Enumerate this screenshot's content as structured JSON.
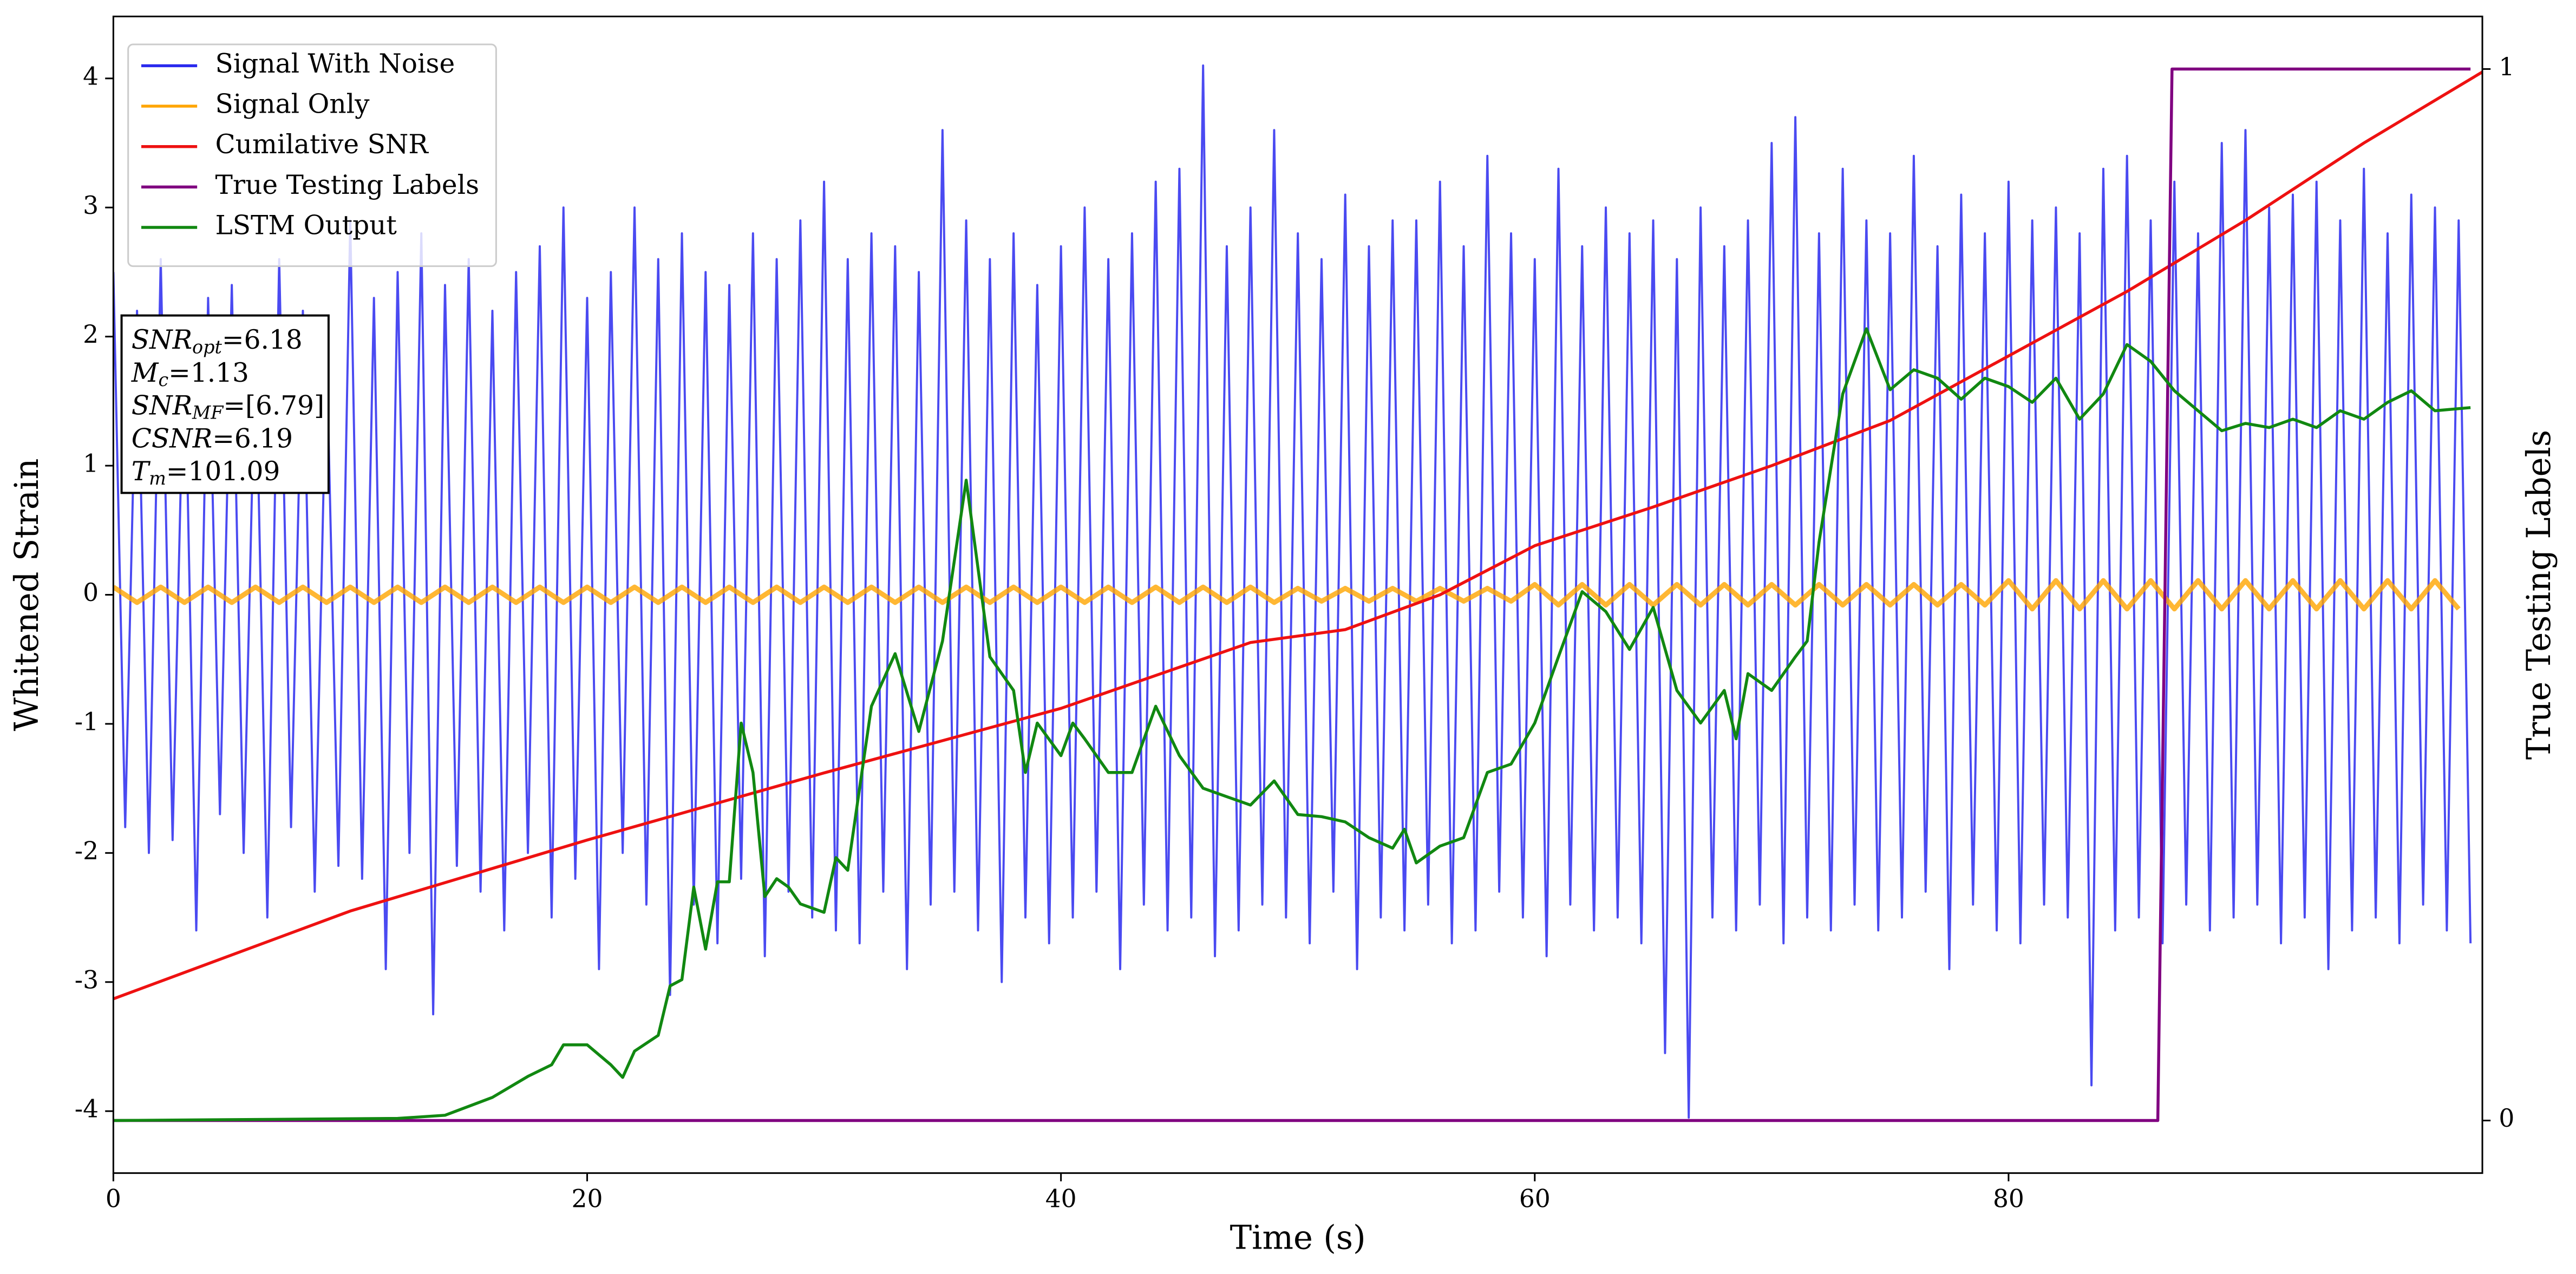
{
  "chart_data": {
    "type": "line",
    "xlabel": "Time (s)",
    "ylabel": "Whitened Strain",
    "y2label": "True Testing Labels",
    "xlim": [
      0,
      100
    ],
    "xticks": [
      0,
      20,
      40,
      60,
      80
    ],
    "ylim": [
      -4.48,
      4.48
    ],
    "yticks": [
      -4,
      -3,
      -2,
      -1,
      0,
      1,
      2,
      3,
      4
    ],
    "y2lim": [
      -0.05,
      1.05
    ],
    "y2ticks": [
      0,
      1
    ],
    "legend": "upper left",
    "annotation": [
      {
        "main": "SNR",
        "sub": "opt",
        "rest": "=6.18"
      },
      {
        "main": "M",
        "sub": "c",
        "rest": "=1.13"
      },
      {
        "main": "SNR",
        "sub": "MF",
        "rest": "=[6.79]"
      },
      {
        "main": "CSNR",
        "sub": "",
        "rest": "=6.19"
      },
      {
        "main": "T",
        "sub": "m",
        "rest": "=101.09"
      }
    ],
    "series": [
      {
        "name": "Signal With Noise",
        "color": "#2a2aee",
        "opacity": 0.85,
        "x": [
          0,
          0.5,
          1,
          1.5,
          2,
          2.5,
          3,
          3.5,
          4,
          4.5,
          5,
          5.5,
          6,
          6.5,
          7,
          7.5,
          8,
          8.5,
          9,
          9.5,
          10,
          10.5,
          11,
          11.5,
          12,
          12.5,
          13,
          13.5,
          14,
          14.5,
          15,
          15.5,
          16,
          16.5,
          17,
          17.5,
          18,
          18.5,
          19,
          19.5,
          20,
          20.5,
          21,
          21.5,
          22,
          22.5,
          23,
          23.5,
          24,
          24.5,
          25,
          25.5,
          26,
          26.5,
          27,
          27.5,
          28,
          28.5,
          29,
          29.5,
          30,
          30.5,
          31,
          31.5,
          32,
          32.5,
          33,
          33.5,
          34,
          34.5,
          35,
          35.5,
          36,
          36.5,
          37,
          37.5,
          38,
          38.5,
          39,
          39.5,
          40,
          40.5,
          41,
          41.5,
          42,
          42.5,
          43,
          43.5,
          44,
          44.5,
          45,
          45.5,
          46,
          46.5,
          47,
          47.5,
          48,
          48.5,
          49,
          49.5,
          50,
          50.5,
          51,
          51.5,
          52,
          52.5,
          53,
          53.5,
          54,
          54.5,
          55,
          55.5,
          56,
          56.5,
          57,
          57.5,
          58,
          58.5,
          59,
          59.5,
          60,
          60.5,
          61,
          61.5,
          62,
          62.5,
          63,
          63.5,
          64,
          64.5,
          65,
          65.5,
          66,
          66.5,
          67,
          67.5,
          68,
          68.5,
          69,
          69.5,
          70,
          70.5,
          71,
          71.5,
          72,
          72.5,
          73,
          73.5,
          74,
          74.5,
          75,
          75.5,
          76,
          76.5,
          77,
          77.5,
          78,
          78.5,
          79,
          79.5,
          80,
          80.5,
          81,
          81.5,
          82,
          82.5,
          83,
          83.5,
          84,
          84.5,
          85,
          85.5,
          86,
          86.5,
          87,
          87.5,
          88,
          88.5,
          89,
          89.5,
          90,
          90.5,
          91,
          91.5,
          92,
          92.5,
          93,
          93.5,
          94,
          94.5,
          95,
          95.5,
          96,
          96.5,
          97,
          97.5,
          98,
          98.5,
          99,
          99.5
        ],
        "values": [
          2.5,
          -1.8,
          2.2,
          -2.0,
          2.6,
          -1.9,
          2.1,
          -2.6,
          2.3,
          -1.7,
          2.4,
          -2.0,
          2.0,
          -2.5,
          2.6,
          -1.8,
          2.2,
          -2.3,
          1.9,
          -2.1,
          2.9,
          -2.2,
          2.3,
          -2.9,
          2.5,
          -2.0,
          2.8,
          -3.25,
          2.4,
          -2.1,
          2.6,
          -2.3,
          2.2,
          -2.6,
          2.5,
          -2.0,
          2.7,
          -2.5,
          3.0,
          -2.2,
          2.3,
          -2.9,
          2.5,
          -2.0,
          3.0,
          -2.4,
          2.6,
          -3.1,
          2.8,
          -2.4,
          2.5,
          -2.7,
          2.4,
          -2.2,
          2.8,
          -2.8,
          2.6,
          -2.3,
          2.9,
          -2.5,
          3.2,
          -2.6,
          2.6,
          -2.7,
          2.8,
          -2.3,
          2.7,
          -2.9,
          2.5,
          -2.4,
          3.6,
          -2.3,
          2.9,
          -2.6,
          2.6,
          -3.0,
          2.8,
          -2.5,
          2.4,
          -2.7,
          2.7,
          -2.5,
          3.0,
          -2.3,
          2.6,
          -2.9,
          2.8,
          -2.4,
          3.2,
          -2.6,
          3.3,
          -2.5,
          4.1,
          -2.8,
          2.7,
          -2.6,
          3.0,
          -2.4,
          3.6,
          -2.5,
          2.8,
          -2.7,
          2.6,
          -2.3,
          3.1,
          -2.9,
          2.7,
          -2.5,
          2.9,
          -2.6,
          2.9,
          -2.4,
          3.2,
          -2.7,
          2.7,
          -2.6,
          3.4,
          -2.3,
          2.8,
          -2.5,
          2.6,
          -2.8,
          3.3,
          -2.4,
          2.7,
          -2.6,
          3.0,
          -2.5,
          2.8,
          -2.7,
          2.9,
          -3.55,
          2.6,
          -4.05,
          3.0,
          -2.5,
          2.7,
          -2.6,
          2.9,
          -2.4,
          3.5,
          -2.7,
          3.7,
          -2.5,
          2.8,
          -2.6,
          3.3,
          -2.4,
          2.9,
          -2.6,
          2.8,
          -2.5,
          3.4,
          -2.3,
          2.7,
          -2.9,
          3.1,
          -2.4,
          2.8,
          -2.6,
          3.2,
          -2.7,
          2.9,
          -2.4,
          3.0,
          -2.5,
          2.8,
          -3.8,
          3.3,
          -2.6,
          3.4,
          -2.5,
          2.9,
          -2.7,
          3.2,
          -2.4,
          2.8,
          -2.6,
          3.5,
          -2.5,
          3.6,
          -2.4,
          3.0,
          -2.7,
          3.1,
          -2.5,
          3.2,
          -2.9,
          2.9,
          -2.6,
          3.3,
          -2.5,
          2.8,
          -2.7,
          3.1,
          -2.4,
          3.0,
          -2.6,
          2.9,
          -2.7
        ]
      },
      {
        "name": "Signal Only",
        "color": "#ffa500",
        "opacity": 0.8,
        "x": [
          0,
          1,
          2,
          3,
          4,
          5,
          6,
          7,
          8,
          9,
          10,
          11,
          12,
          13,
          14,
          15,
          16,
          17,
          18,
          19,
          20,
          21,
          22,
          23,
          24,
          25,
          26,
          27,
          28,
          29,
          30,
          31,
          32,
          33,
          34,
          35,
          36,
          37,
          38,
          39,
          40,
          41,
          42,
          43,
          44,
          45,
          46,
          47,
          48,
          49,
          50,
          51,
          52,
          53,
          54,
          55,
          56,
          57,
          58,
          59,
          60,
          61,
          62,
          63,
          64,
          65,
          66,
          67,
          68,
          69,
          70,
          71,
          72,
          73,
          74,
          75,
          76,
          77,
          78,
          79,
          80,
          81,
          82,
          83,
          84,
          85,
          86,
          87,
          88,
          89,
          90,
          91,
          92,
          93,
          94,
          95,
          96,
          97,
          98,
          99
        ],
        "values": [
          0.06,
          -0.06,
          0.06,
          -0.06,
          0.06,
          -0.06,
          0.06,
          -0.06,
          0.06,
          -0.06,
          0.06,
          -0.06,
          0.06,
          -0.06,
          0.06,
          -0.06,
          0.06,
          -0.06,
          0.06,
          -0.06,
          0.06,
          -0.06,
          0.06,
          -0.06,
          0.06,
          -0.06,
          0.06,
          -0.06,
          0.06,
          -0.06,
          0.06,
          -0.06,
          0.06,
          -0.06,
          0.06,
          -0.06,
          0.06,
          -0.06,
          0.06,
          -0.06,
          0.06,
          -0.06,
          0.06,
          -0.06,
          0.06,
          -0.06,
          0.06,
          -0.06,
          0.06,
          -0.06,
          0.05,
          -0.05,
          0.05,
          -0.05,
          0.05,
          -0.05,
          0.05,
          -0.05,
          0.05,
          -0.05,
          0.08,
          -0.08,
          0.08,
          -0.08,
          0.08,
          -0.08,
          0.08,
          -0.08,
          0.08,
          -0.08,
          0.08,
          -0.08,
          0.08,
          -0.08,
          0.08,
          -0.08,
          0.08,
          -0.08,
          0.08,
          -0.08,
          0.11,
          -0.11,
          0.11,
          -0.11,
          0.11,
          -0.11,
          0.11,
          -0.11,
          0.11,
          -0.11,
          0.11,
          -0.11,
          0.11,
          -0.11,
          0.11,
          -0.11,
          0.11,
          -0.11,
          0.11,
          -0.11
        ]
      },
      {
        "name": "Cumilative SNR",
        "color": "#ee1111",
        "opacity": 1,
        "x": [
          0,
          10,
          20,
          30,
          40,
          48,
          52,
          56,
          60,
          65,
          70,
          75,
          80,
          85,
          90,
          95,
          100
        ],
        "values": [
          -3.13,
          -2.45,
          -1.9,
          -1.38,
          -0.88,
          -0.37,
          -0.27,
          0.0,
          0.38,
          0.68,
          1.0,
          1.35,
          1.85,
          2.35,
          2.9,
          3.5,
          4.05
        ]
      },
      {
        "name": "True Testing Labels",
        "color": "#800080",
        "opacity": 1,
        "axis": "y2",
        "x": [
          0,
          86.3,
          86.9,
          99.5
        ],
        "values": [
          0,
          0,
          1,
          1
        ]
      },
      {
        "name": "LSTM Output",
        "color": "#118811",
        "opacity": 1,
        "axis": "y2",
        "x": [
          0,
          12,
          14,
          16,
          17.5,
          18.5,
          19,
          20,
          21,
          21.5,
          22,
          23,
          23.5,
          24,
          24.5,
          25,
          25.5,
          26,
          26.5,
          27,
          27.5,
          28,
          28.5,
          29,
          30,
          30.5,
          31,
          32,
          33,
          34,
          35,
          36,
          37,
          38,
          38.5,
          39,
          40,
          40.5,
          41,
          42,
          43,
          44,
          45,
          46,
          47,
          48,
          49,
          50,
          51,
          52,
          53,
          54,
          54.5,
          55,
          56,
          57,
          58,
          59,
          60,
          61,
          62,
          63,
          64,
          65,
          66,
          67,
          68,
          68.5,
          69,
          70,
          71,
          71.5,
          72,
          73,
          74,
          75,
          76,
          77,
          78,
          79,
          80,
          81,
          82,
          83,
          84,
          85,
          86,
          87,
          88,
          89,
          90,
          91,
          92,
          93,
          94,
          95,
          96,
          97,
          98,
          99.5
        ],
        "values": [
          0,
          0.002,
          0.005,
          0.022,
          0.042,
          0.053,
          0.072,
          0.072,
          0.053,
          0.041,
          0.066,
          0.081,
          0.128,
          0.134,
          0.222,
          0.163,
          0.227,
          0.227,
          0.378,
          0.331,
          0.213,
          0.23,
          0.222,
          0.206,
          0.198,
          0.25,
          0.238,
          0.394,
          0.444,
          0.37,
          0.456,
          0.609,
          0.441,
          0.409,
          0.331,
          0.378,
          0.347,
          0.378,
          0.363,
          0.331,
          0.331,
          0.394,
          0.347,
          0.316,
          0.308,
          0.3,
          0.323,
          0.291,
          0.289,
          0.284,
          0.269,
          0.259,
          0.277,
          0.245,
          0.261,
          0.269,
          0.331,
          0.339,
          0.378,
          0.441,
          0.503,
          0.484,
          0.448,
          0.488,
          0.409,
          0.378,
          0.409,
          0.363,
          0.425,
          0.409,
          0.441,
          0.456,
          0.55,
          0.691,
          0.753,
          0.695,
          0.714,
          0.706,
          0.686,
          0.706,
          0.698,
          0.683,
          0.706,
          0.667,
          0.691,
          0.738,
          0.722,
          0.694,
          0.675,
          0.656,
          0.663,
          0.659,
          0.667,
          0.659,
          0.675,
          0.667,
          0.683,
          0.694,
          0.675,
          0.678
        ]
      }
    ]
  }
}
